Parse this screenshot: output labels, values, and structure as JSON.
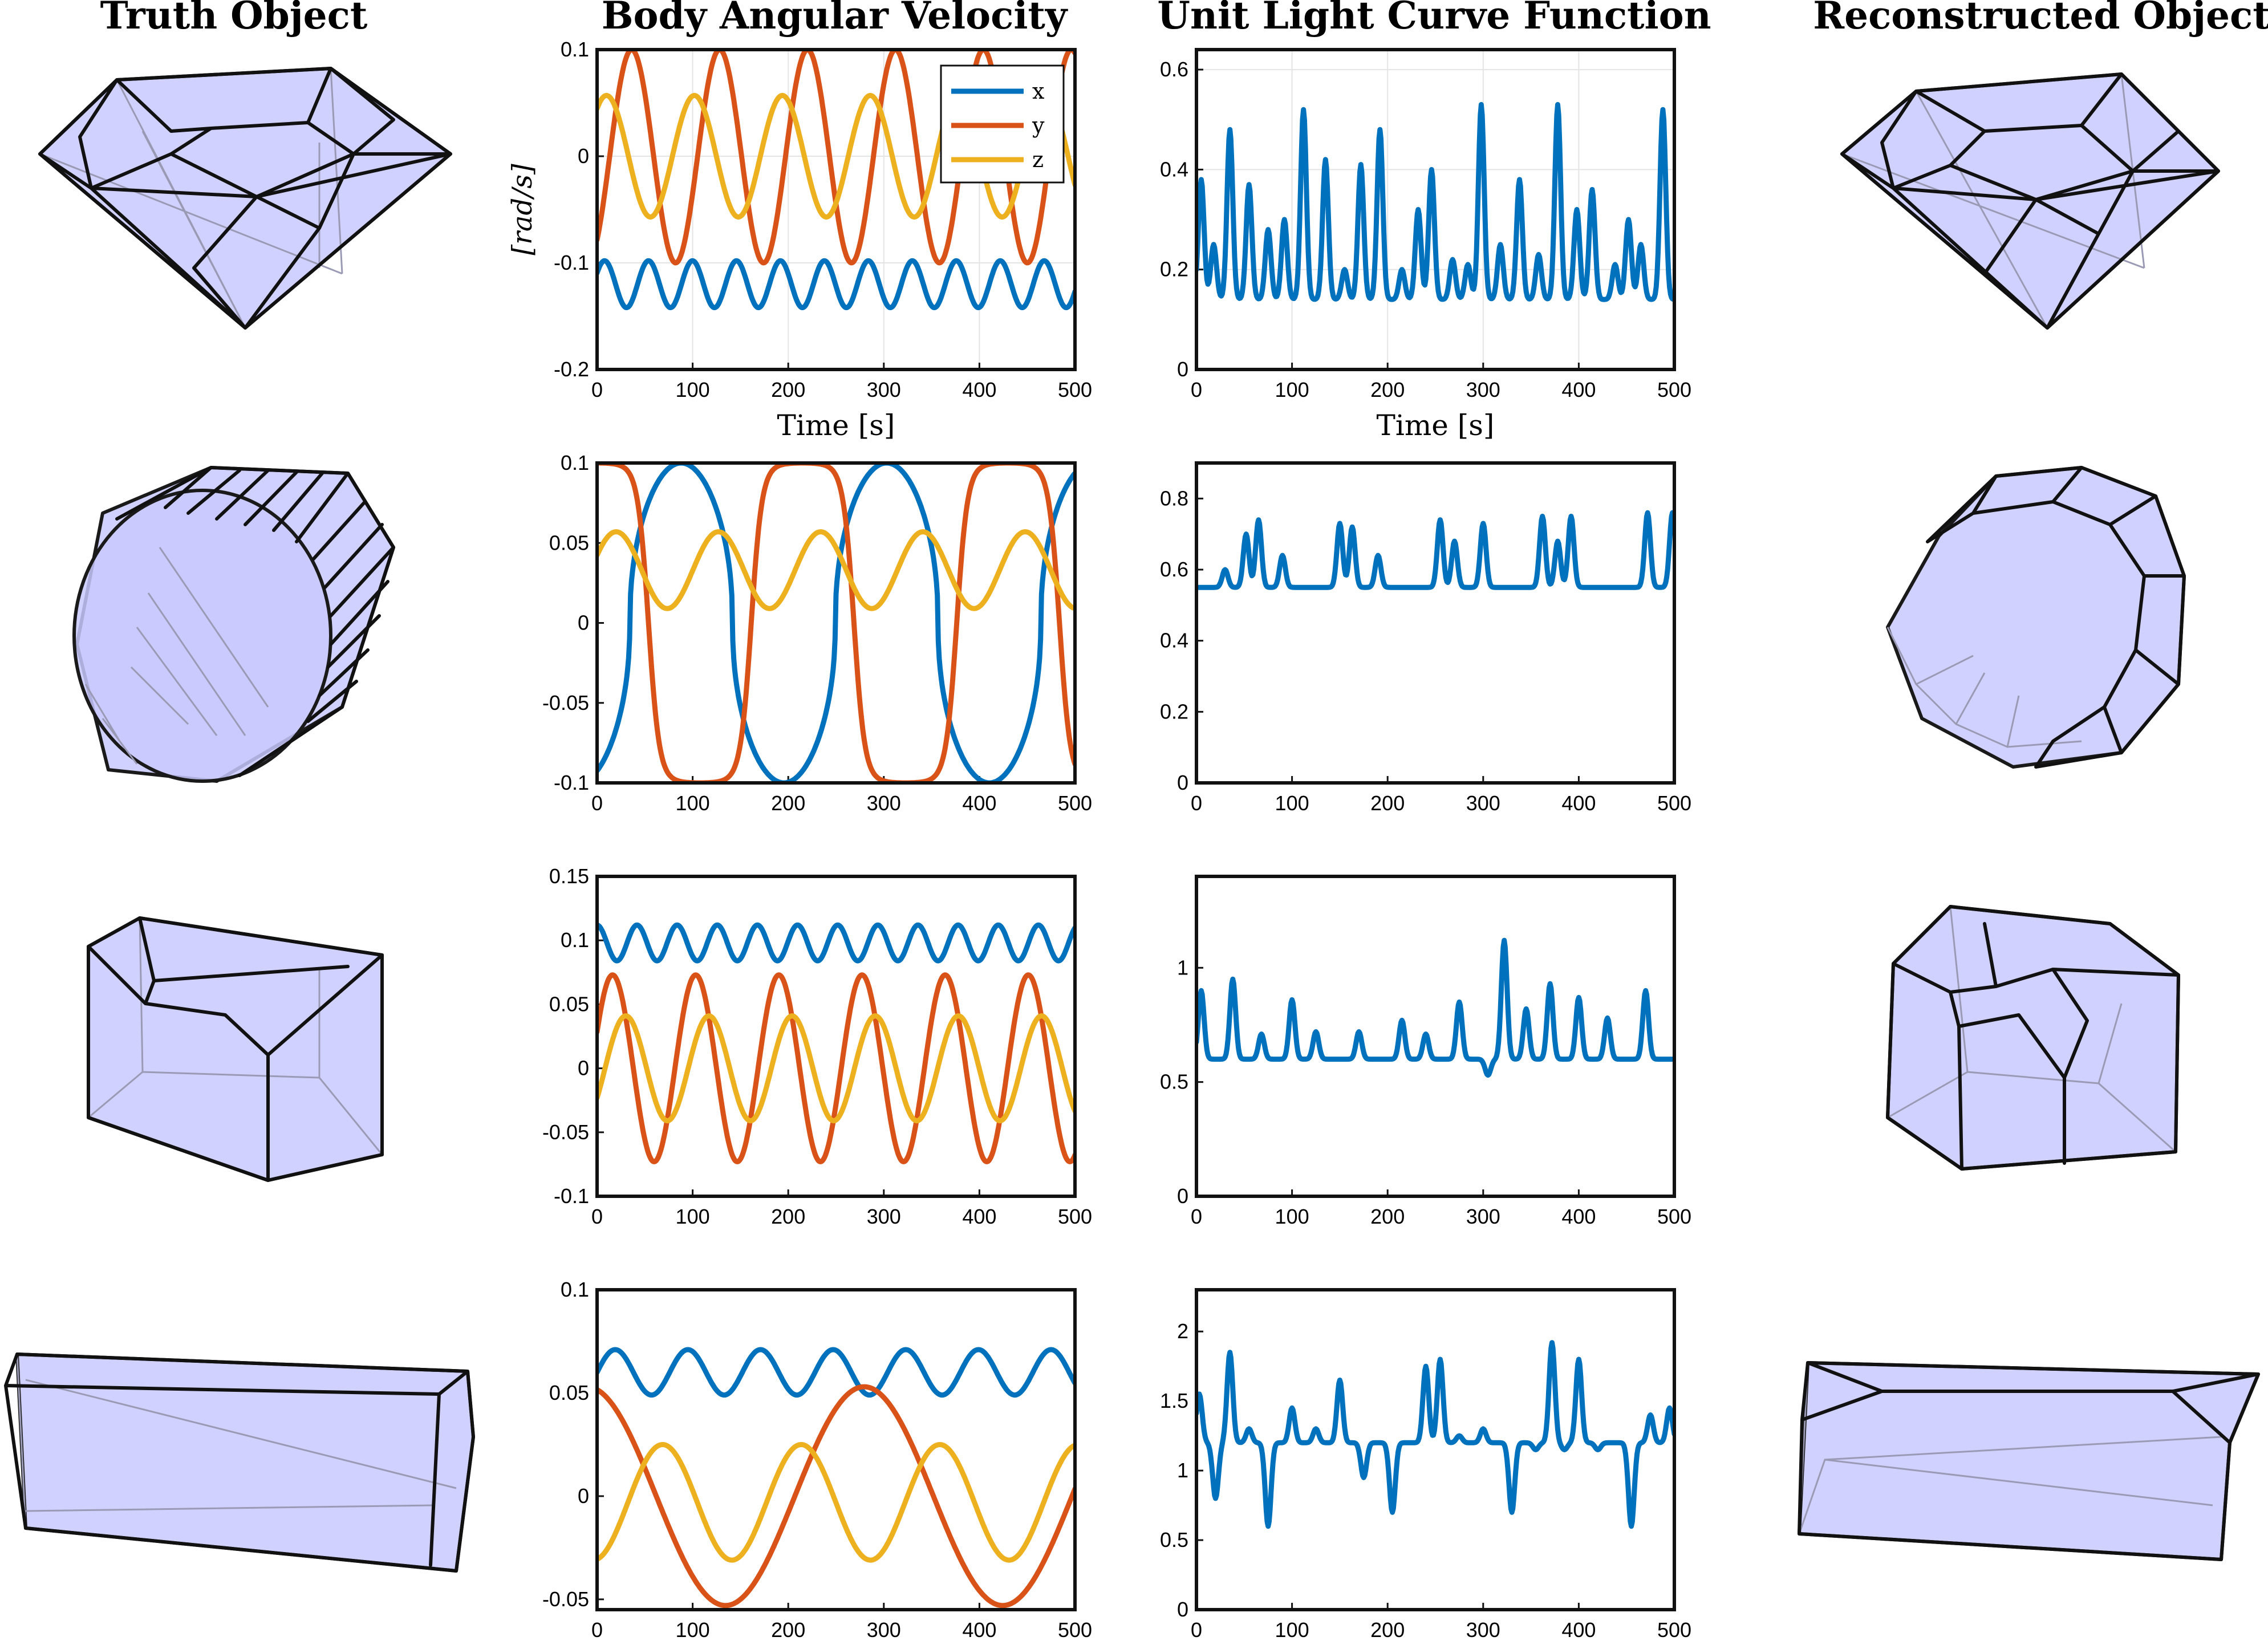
{
  "columns": {
    "truth": "Truth Object",
    "velocity": "Body Angular Velocity",
    "lightcurve": "Unit Light Curve Function",
    "reconstructed": "Reconstructed Object"
  },
  "colors": {
    "x": "#0072BD",
    "y": "#D95319",
    "z": "#EDB120",
    "lc": "#0072BD",
    "face": "#c9c9ff"
  },
  "chart_data": [
    {
      "type": "line",
      "panel": "velocity-row1",
      "ylabel": "[rad/s]",
      "xlabel": "Time [s]",
      "xlim": [
        0,
        500
      ],
      "ylim": [
        -0.2,
        0.1
      ],
      "xticks": [
        "0",
        "100",
        "200",
        "300",
        "400",
        "500"
      ],
      "yticks": [
        "-0.2",
        "-0.1",
        "0",
        "0.1"
      ],
      "legend": {
        "position": "top-right",
        "entries": [
          "x",
          "y",
          "z"
        ]
      },
      "series": [
        {
          "name": "x",
          "color": "#0072BD",
          "form": "sine",
          "offset": -0.12,
          "amp": 0.022,
          "period": 46,
          "phase": 0.5
        },
        {
          "name": "y",
          "color": "#D95319",
          "form": "sine",
          "offset": 0.0,
          "amp": 0.1,
          "period": 92,
          "phase": -0.9
        },
        {
          "name": "z",
          "color": "#EDB120",
          "form": "sine",
          "offset": 0.0,
          "amp": 0.057,
          "period": 92,
          "phase": 0.9
        }
      ]
    },
    {
      "type": "line",
      "panel": "lightcurve-row1",
      "xlabel": "Time [s]",
      "xlim": [
        0,
        500
      ],
      "ylim": [
        0,
        0.64
      ],
      "xticks": [
        "0",
        "100",
        "200",
        "300",
        "400",
        "500"
      ],
      "yticks": [
        "0",
        "0.2",
        "0.4",
        "0.6"
      ],
      "series": [
        {
          "color": "#0072BD",
          "form": "spiky",
          "base": 0.14,
          "seed": 11,
          "peaks": [
            [
              5,
              0.38
            ],
            [
              18,
              0.25
            ],
            [
              35,
              0.48
            ],
            [
              55,
              0.37
            ],
            [
              75,
              0.28
            ],
            [
              92,
              0.3
            ],
            [
              112,
              0.52
            ],
            [
              135,
              0.42
            ],
            [
              155,
              0.2
            ],
            [
              172,
              0.41
            ],
            [
              192,
              0.48
            ],
            [
              215,
              0.2
            ],
            [
              232,
              0.32
            ],
            [
              246,
              0.4
            ],
            [
              268,
              0.22
            ],
            [
              284,
              0.21
            ],
            [
              298,
              0.53
            ],
            [
              318,
              0.25
            ],
            [
              338,
              0.38
            ],
            [
              358,
              0.23
            ],
            [
              378,
              0.53
            ],
            [
              398,
              0.32
            ],
            [
              414,
              0.36
            ],
            [
              438,
              0.21
            ],
            [
              452,
              0.3
            ],
            [
              465,
              0.25
            ],
            [
              488,
              0.52
            ]
          ]
        }
      ]
    },
    {
      "type": "line",
      "panel": "velocity-row2",
      "xlim": [
        0,
        500
      ],
      "ylim": [
        -0.1,
        0.1
      ],
      "xticks": [
        "0",
        "100",
        "200",
        "300",
        "400",
        "500"
      ],
      "yticks": [
        "-0.1",
        "-0.05",
        "0",
        "0.05",
        "0.1"
      ],
      "series": [
        {
          "name": "x",
          "color": "#0072BD",
          "form": "pulse",
          "offset": 0.0,
          "amp": 0.1,
          "period": 215,
          "phase": -1.0,
          "sharp": 2.2
        },
        {
          "name": "y",
          "color": "#D95319",
          "form": "square",
          "offset": 0.0,
          "amp": 0.1,
          "period": 215,
          "phase": 1.57,
          "sharp": 3.0
        },
        {
          "name": "z",
          "color": "#EDB120",
          "form": "sine",
          "offset": 0.033,
          "amp": 0.024,
          "period": 107,
          "phase": 0.4
        }
      ]
    },
    {
      "type": "line",
      "panel": "lightcurve-row2",
      "xlim": [
        0,
        500
      ],
      "ylim": [
        0,
        0.9
      ],
      "xticks": [
        "0",
        "100",
        "200",
        "300",
        "400",
        "500"
      ],
      "yticks": [
        "0",
        "0.2",
        "0.4",
        "0.6",
        "0.8"
      ],
      "series": [
        {
          "color": "#0072BD",
          "form": "spiky",
          "base": 0.55,
          "seed": 7,
          "peaks": [
            [
              30,
              0.6
            ],
            [
              52,
              0.7
            ],
            [
              65,
              0.74
            ],
            [
              90,
              0.64
            ],
            [
              150,
              0.73
            ],
            [
              163,
              0.72
            ],
            [
              190,
              0.64
            ],
            [
              255,
              0.74
            ],
            [
              270,
              0.68
            ],
            [
              300,
              0.73
            ],
            [
              362,
              0.75
            ],
            [
              378,
              0.68
            ],
            [
              392,
              0.75
            ],
            [
              472,
              0.76
            ],
            [
              498,
              0.76
            ]
          ]
        }
      ]
    },
    {
      "type": "line",
      "panel": "velocity-row3",
      "xlim": [
        0,
        500
      ],
      "ylim": [
        -0.1,
        0.15
      ],
      "xticks": [
        "0",
        "100",
        "200",
        "300",
        "400",
        "500"
      ],
      "yticks": [
        "-0.1",
        "-0.05",
        "0",
        "0.05",
        "0.1",
        "0.15"
      ],
      "series": [
        {
          "name": "x",
          "color": "#0072BD",
          "form": "sine",
          "offset": 0.098,
          "amp": 0.014,
          "period": 42,
          "phase": 1.6
        },
        {
          "name": "y",
          "color": "#D95319",
          "form": "sine",
          "offset": 0.0,
          "amp": 0.073,
          "period": 87,
          "phase": 0.4
        },
        {
          "name": "z",
          "color": "#EDB120",
          "form": "sine",
          "offset": 0.0,
          "amp": 0.041,
          "period": 87,
          "phase": -0.6
        }
      ]
    },
    {
      "type": "line",
      "panel": "lightcurve-row3",
      "xlim": [
        0,
        500
      ],
      "ylim": [
        0,
        1.4
      ],
      "xticks": [
        "0",
        "100",
        "200",
        "300",
        "400",
        "500"
      ],
      "yticks": [
        "0",
        "0.5",
        "1"
      ],
      "series": [
        {
          "color": "#0072BD",
          "form": "spiky",
          "base": 0.6,
          "seed": 3,
          "peaks": [
            [
              5,
              0.9
            ],
            [
              38,
              0.95
            ],
            [
              68,
              0.71
            ],
            [
              100,
              0.86
            ],
            [
              125,
              0.72
            ],
            [
              170,
              0.72
            ],
            [
              215,
              0.77
            ],
            [
              240,
              0.71
            ],
            [
              275,
              0.85
            ],
            [
              305,
              0.53
            ],
            [
              322,
              1.12
            ],
            [
              345,
              0.82
            ],
            [
              370,
              0.93
            ],
            [
              400,
              0.87
            ],
            [
              430,
              0.78
            ],
            [
              470,
              0.9
            ]
          ]
        }
      ]
    },
    {
      "type": "line",
      "panel": "velocity-row4",
      "xlim": [
        0,
        500
      ],
      "ylim": [
        -0.055,
        0.1
      ],
      "xticks": [
        "0",
        "100",
        "200",
        "300",
        "400",
        "500"
      ],
      "yticks": [
        "-0.05",
        "0",
        "0.05",
        "0.1"
      ],
      "series": [
        {
          "name": "x",
          "color": "#0072BD",
          "form": "sine",
          "offset": 0.06,
          "amp": 0.011,
          "period": 76,
          "phase": 0.0
        },
        {
          "name": "y",
          "color": "#D95319",
          "form": "sine",
          "offset": 0.0,
          "amp": 0.053,
          "period": 290,
          "phase": 1.8
        },
        {
          "name": "z",
          "color": "#EDB120",
          "form": "sine",
          "offset": -0.003,
          "amp": 0.028,
          "period": 145,
          "phase": -1.4
        }
      ]
    },
    {
      "type": "line",
      "panel": "lightcurve-row4",
      "xlim": [
        0,
        500
      ],
      "ylim": [
        0,
        2.3
      ],
      "xticks": [
        "0",
        "100",
        "200",
        "300",
        "400",
        "500"
      ],
      "yticks": [
        "0",
        "0.5",
        "1",
        "1.5",
        "2"
      ],
      "series": [
        {
          "color": "#0072BD",
          "form": "spiky",
          "base": 1.2,
          "seed": 5,
          "peaks": [
            [
              3,
              1.55
            ],
            [
              20,
              0.8
            ],
            [
              35,
              1.85
            ],
            [
              55,
              1.3
            ],
            [
              75,
              0.6
            ],
            [
              100,
              1.45
            ],
            [
              125,
              1.3
            ],
            [
              150,
              1.65
            ],
            [
              175,
              0.95
            ],
            [
              205,
              0.7
            ],
            [
              240,
              1.75
            ],
            [
              255,
              1.8
            ],
            [
              275,
              1.25
            ],
            [
              300,
              1.3
            ],
            [
              330,
              0.7
            ],
            [
              355,
              1.15
            ],
            [
              372,
              1.92
            ],
            [
              385,
              1.15
            ],
            [
              400,
              1.8
            ],
            [
              420,
              1.15
            ],
            [
              455,
              0.6
            ],
            [
              475,
              1.4
            ],
            [
              495,
              1.45
            ]
          ]
        }
      ]
    }
  ]
}
